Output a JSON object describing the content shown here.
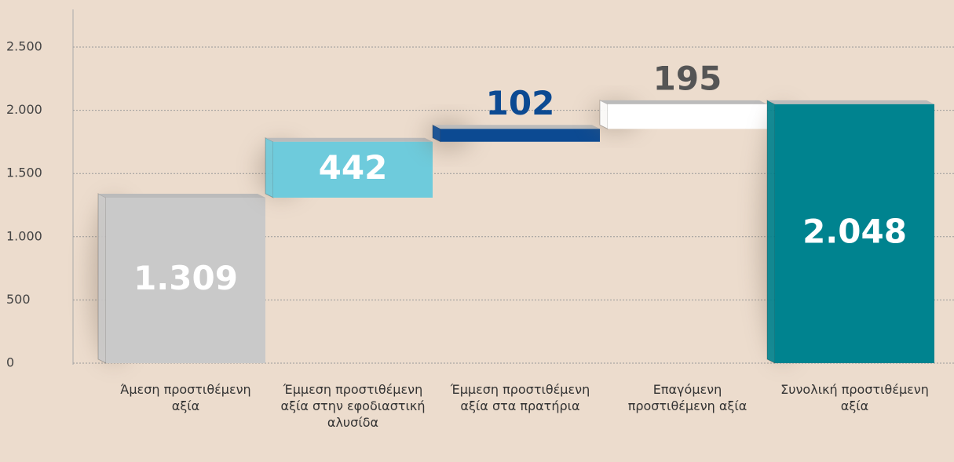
{
  "chart_data": {
    "type": "waterfall",
    "categories": [
      "Άμεση προστιθέμενη αξία",
      "Έμμεση προστιθέμενη αξία στην εφοδιαστική αλυσίδα",
      "Έμμεση προστιθέμενη αξία στα πρατήρια",
      "Επαγόμενη προστιθέμενη αξία",
      "Συνολική προστιθέμενη αξία"
    ],
    "values": [
      1309,
      442,
      102,
      195,
      2048
    ],
    "value_labels": [
      "1.309",
      "442",
      "102",
      "195",
      "2.048"
    ],
    "measure": [
      "relative",
      "relative",
      "relative",
      "relative",
      "total"
    ],
    "colors": [
      "#c9c9c9",
      "#6ecbdc",
      "#0c4a92",
      "#ffffff",
      "#00838f"
    ],
    "label_colors": [
      "#ffffff",
      "#ffffff",
      "#0c4a92",
      "#555555",
      "#ffffff"
    ],
    "ylim": [
      0,
      2500
    ],
    "yticks": [
      0,
      500,
      {
        "value": 1000,
        "label": "1.000"
      },
      {
        "value": 1500,
        "label": "1.500"
      },
      {
        "value": 2000,
        "label": "2.000"
      },
      {
        "value": 2500,
        "label": "2.500"
      }
    ],
    "grid": true
  }
}
